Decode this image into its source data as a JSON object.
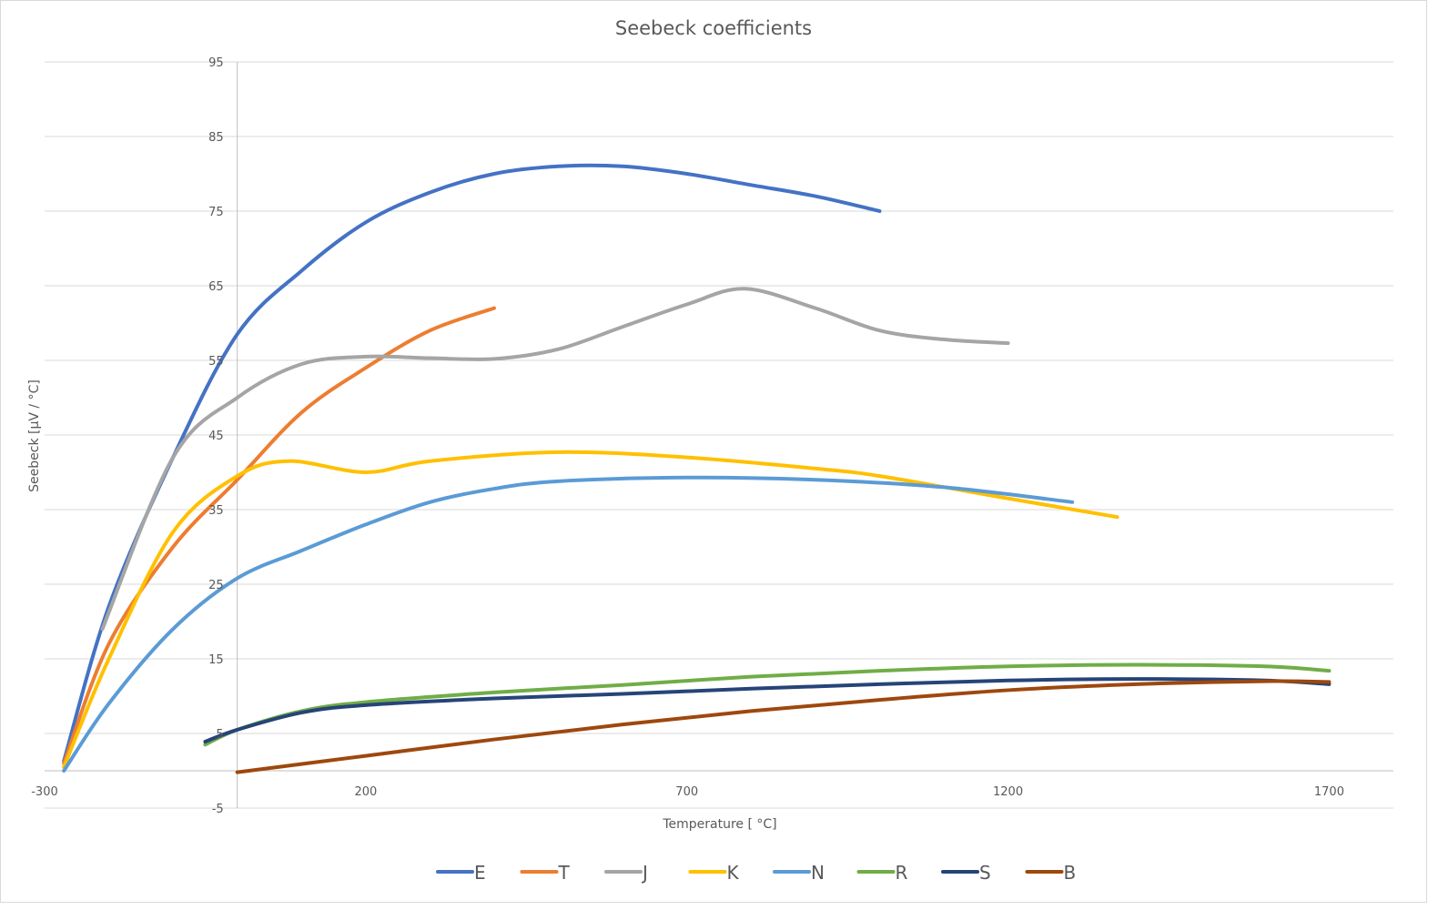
{
  "chart_data": {
    "type": "line",
    "title": "Seebeck coefficients",
    "xlabel": "Temperature [ °C]",
    "ylabel": "Seebeck [µV / °C]",
    "xlim": [
      -300,
      1800
    ],
    "ylim": [
      -5,
      95
    ],
    "x_ticks": [
      -300,
      200,
      700,
      1200,
      1700
    ],
    "y_ticks": [
      -5,
      5,
      15,
      25,
      35,
      45,
      55,
      65,
      75,
      85,
      95
    ],
    "grid": "horizontal",
    "legend_position": "bottom",
    "series": [
      {
        "name": "E",
        "color": "#4472C4",
        "points": [
          [
            -270,
            1.3
          ],
          [
            -200,
            22
          ],
          [
            -100,
            42
          ],
          [
            0,
            58.5
          ],
          [
            100,
            67
          ],
          [
            200,
            73.5
          ],
          [
            300,
            77.5
          ],
          [
            400,
            80
          ],
          [
            500,
            81
          ],
          [
            600,
            81
          ],
          [
            700,
            80
          ],
          [
            800,
            78.5
          ],
          [
            900,
            77
          ],
          [
            1000,
            75
          ]
        ]
      },
      {
        "name": "T",
        "color": "#ED7D31",
        "points": [
          [
            -270,
            1
          ],
          [
            -200,
            17
          ],
          [
            -100,
            30
          ],
          [
            0,
            39
          ],
          [
            100,
            48
          ],
          [
            200,
            54
          ],
          [
            300,
            59
          ],
          [
            400,
            62
          ]
        ]
      },
      {
        "name": "J",
        "color": "#A5A5A5",
        "points": [
          [
            -210,
            19
          ],
          [
            -100,
            42
          ],
          [
            0,
            50
          ],
          [
            100,
            54.5
          ],
          [
            200,
            55.5
          ],
          [
            300,
            55.3
          ],
          [
            400,
            55.2
          ],
          [
            500,
            56.5
          ],
          [
            600,
            59.5
          ],
          [
            700,
            62.5
          ],
          [
            790,
            64.6
          ],
          [
            900,
            62
          ],
          [
            1000,
            59
          ],
          [
            1100,
            57.8
          ],
          [
            1200,
            57.3
          ]
        ]
      },
      {
        "name": "K",
        "color": "#FFC000",
        "points": [
          [
            -270,
            0.5
          ],
          [
            -200,
            15
          ],
          [
            -100,
            32
          ],
          [
            0,
            39.5
          ],
          [
            80,
            41.5
          ],
          [
            200,
            40
          ],
          [
            300,
            41.5
          ],
          [
            500,
            42.7
          ],
          [
            700,
            42
          ],
          [
            900,
            40.5
          ],
          [
            1000,
            39.5
          ],
          [
            1200,
            36.5
          ],
          [
            1370,
            34
          ]
        ]
      },
      {
        "name": "N",
        "color": "#5B9BD5",
        "points": [
          [
            -270,
            0
          ],
          [
            -200,
            9
          ],
          [
            -100,
            19
          ],
          [
            0,
            25.8
          ],
          [
            100,
            29.5
          ],
          [
            200,
            33
          ],
          [
            300,
            36
          ],
          [
            400,
            37.8
          ],
          [
            500,
            38.8
          ],
          [
            700,
            39.3
          ],
          [
            900,
            39
          ],
          [
            1100,
            38
          ],
          [
            1300,
            36
          ]
        ]
      },
      {
        "name": "R",
        "color": "#70AD47",
        "points": [
          [
            -50,
            3.5
          ],
          [
            0,
            5.5
          ],
          [
            100,
            8
          ],
          [
            200,
            9.2
          ],
          [
            400,
            10.5
          ],
          [
            600,
            11.5
          ],
          [
            800,
            12.6
          ],
          [
            1000,
            13.4
          ],
          [
            1200,
            14
          ],
          [
            1400,
            14.2
          ],
          [
            1600,
            14
          ],
          [
            1700,
            13.4
          ]
        ]
      },
      {
        "name": "S",
        "color": "#264478",
        "points": [
          [
            -50,
            3.9
          ],
          [
            0,
            5.5
          ],
          [
            100,
            7.8
          ],
          [
            200,
            8.8
          ],
          [
            400,
            9.7
          ],
          [
            600,
            10.3
          ],
          [
            800,
            11
          ],
          [
            1000,
            11.6
          ],
          [
            1200,
            12.1
          ],
          [
            1400,
            12.3
          ],
          [
            1600,
            12.1
          ],
          [
            1700,
            11.6
          ]
        ]
      },
      {
        "name": "B",
        "color": "#9E480E",
        "points": [
          [
            0,
            -0.2
          ],
          [
            200,
            2
          ],
          [
            400,
            4.2
          ],
          [
            600,
            6.2
          ],
          [
            800,
            8
          ],
          [
            1000,
            9.5
          ],
          [
            1200,
            10.8
          ],
          [
            1400,
            11.6
          ],
          [
            1600,
            12
          ],
          [
            1700,
            11.9
          ]
        ]
      }
    ]
  }
}
